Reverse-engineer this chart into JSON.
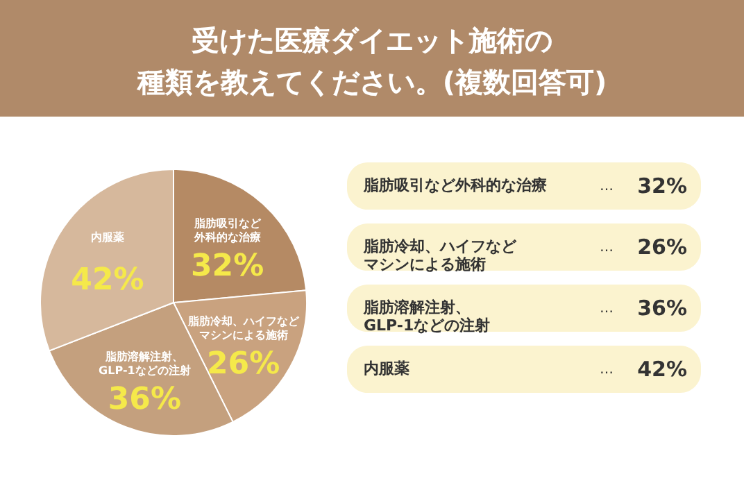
{
  "chart_data": {
    "type": "pie",
    "title": "受けた医療ダイエット施術の種類を教えてください。(複数回答可)",
    "categories": [
      "脂肪吸引など外科的な治療",
      "脂肪冷却、ハイフなどマシンによる施術",
      "脂肪溶解注射、GLP-1などの注射",
      "内服薬"
    ],
    "values": [
      32,
      26,
      36,
      42
    ],
    "value_labels": [
      "32%",
      "26%",
      "36%",
      "42%"
    ],
    "colors": [
      "#b58a64",
      "#c9a27f",
      "#c4a07e",
      "#d6b89c"
    ],
    "annotations": [
      "…",
      "…",
      "…",
      "…"
    ]
  }
}
